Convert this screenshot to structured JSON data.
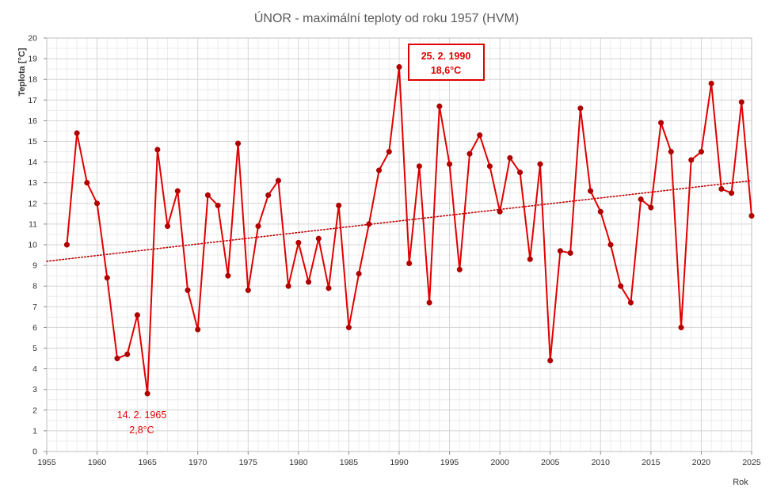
{
  "chart_data": {
    "type": "line",
    "title": "ÚNOR - maximální teploty od roku 1957 (HVM)",
    "xlabel": "Rok",
    "ylabel": "Teplota [°C]",
    "xlim": [
      1955,
      2025
    ],
    "ylim": [
      0,
      20
    ],
    "x_ticks": [
      1955,
      1960,
      1965,
      1970,
      1975,
      1980,
      1985,
      1990,
      1995,
      2000,
      2005,
      2010,
      2015,
      2020,
      2025
    ],
    "y_ticks": [
      0,
      1,
      2,
      3,
      4,
      5,
      6,
      7,
      8,
      9,
      10,
      11,
      12,
      13,
      14,
      15,
      16,
      17,
      18,
      19,
      20
    ],
    "grid": true,
    "legend": "none",
    "series": [
      {
        "color": "#e00000",
        "x": [
          1957,
          1958,
          1959,
          1960,
          1961,
          1962,
          1963,
          1964,
          1965,
          1966,
          1967,
          1968,
          1969,
          1970,
          1971,
          1972,
          1973,
          1974,
          1975,
          1976,
          1977,
          1978,
          1979,
          1980,
          1981,
          1982,
          1983,
          1984,
          1985,
          1986,
          1987,
          1988,
          1989,
          1990,
          1991,
          1992,
          1993,
          1994,
          1995,
          1996,
          1997,
          1998,
          1999,
          2000,
          2001,
          2002,
          2003,
          2004,
          2005,
          2006,
          2007,
          2008,
          2009,
          2010,
          2011,
          2012,
          2013,
          2014,
          2015,
          2016,
          2017,
          2018,
          2019,
          2020,
          2021,
          2022,
          2023,
          2024,
          2025
        ],
        "y": [
          10.0,
          15.4,
          13.0,
          12.0,
          8.4,
          4.5,
          4.7,
          6.6,
          2.8,
          14.6,
          10.9,
          12.6,
          7.8,
          5.9,
          12.4,
          11.9,
          8.5,
          14.9,
          7.8,
          10.9,
          12.4,
          13.1,
          8.0,
          10.1,
          8.2,
          10.3,
          7.9,
          11.9,
          6.0,
          8.6,
          11.0,
          13.6,
          14.5,
          18.6,
          9.1,
          13.8,
          7.2,
          16.7,
          13.9,
          8.8,
          14.4,
          15.3,
          13.8,
          11.6,
          14.2,
          13.5,
          9.3,
          13.9,
          4.4,
          9.7,
          9.6,
          16.6,
          12.6,
          11.6,
          10.0,
          8.0,
          7.2,
          12.2,
          11.8,
          15.9,
          14.5,
          6.0,
          14.1,
          14.5,
          17.8,
          12.7,
          12.5,
          16.9,
          11.4
        ]
      }
    ],
    "trendline": {
      "type": "linear",
      "style": "dotted",
      "color": "#c00000",
      "x": [
        1955,
        2025
      ],
      "y": [
        9.2,
        13.1
      ]
    },
    "annotations": {
      "max": {
        "date": "25. 2. 1990",
        "value": "18,6°C",
        "boxed": true
      },
      "min": {
        "date": "14. 2. 1965",
        "value": "2,8°C",
        "boxed": false
      }
    }
  }
}
